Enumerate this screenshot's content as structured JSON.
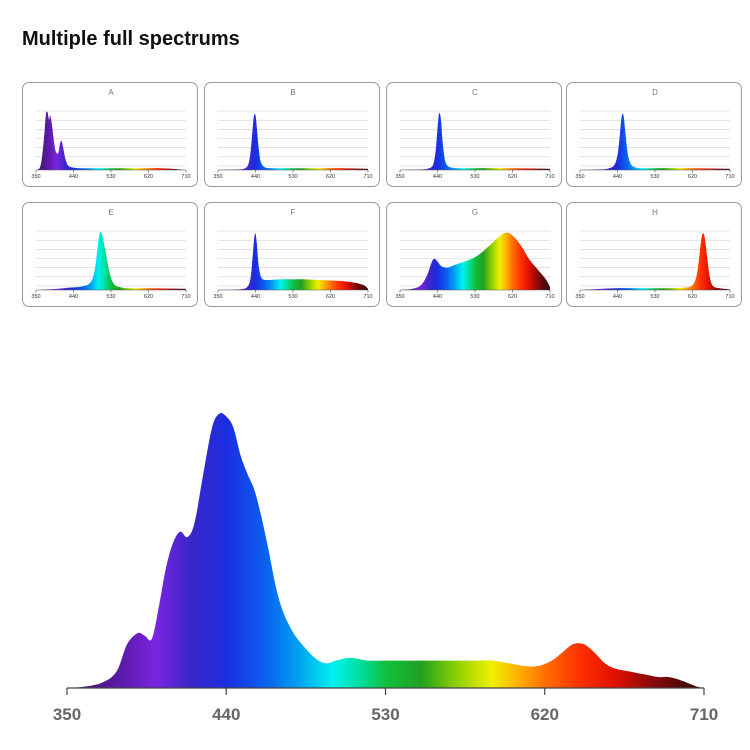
{
  "page": {
    "title": "Multiple full spectrums"
  },
  "chart_data": [
    {
      "type": "area",
      "title": "A",
      "xlim": [
        350,
        710
      ],
      "xticks": [
        350,
        440,
        530,
        620,
        710
      ],
      "ylim": [
        0,
        1.2
      ],
      "gridlines": true,
      "series": [
        {
          "x": [
            350,
            355,
            360,
            365,
            370,
            374,
            378,
            381,
            384,
            388,
            392,
            396,
            400,
            404,
            408,
            412,
            416,
            420,
            425,
            430,
            440,
            455,
            470,
            500,
            530,
            560,
            590,
            620,
            650,
            680,
            710
          ],
          "y": [
            0,
            0.01,
            0.05,
            0.25,
            0.6,
            0.95,
            0.97,
            0.85,
            0.92,
            0.78,
            0.55,
            0.35,
            0.28,
            0.3,
            0.46,
            0.48,
            0.35,
            0.2,
            0.1,
            0.06,
            0.04,
            0.03,
            0.03,
            0.03,
            0.03,
            0.03,
            0.03,
            0.03,
            0.03,
            0.02,
            0
          ]
        }
      ]
    },
    {
      "type": "area",
      "title": "B",
      "xlim": [
        350,
        710
      ],
      "xticks": [
        350,
        440,
        530,
        620,
        710
      ],
      "ylim": [
        0,
        1.2
      ],
      "gridlines": true,
      "series": [
        {
          "x": [
            350,
            400,
            415,
            423,
            428,
            432,
            435,
            438,
            441,
            444,
            448,
            452,
            458,
            465,
            480,
            530,
            600,
            650,
            710
          ],
          "y": [
            0,
            0.01,
            0.03,
            0.1,
            0.3,
            0.6,
            0.85,
            0.95,
            0.88,
            0.65,
            0.35,
            0.15,
            0.07,
            0.04,
            0.03,
            0.03,
            0.03,
            0.03,
            0.02
          ]
        }
      ]
    },
    {
      "type": "area",
      "title": "C",
      "xlim": [
        350,
        710
      ],
      "xticks": [
        350,
        440,
        530,
        620,
        710
      ],
      "ylim": [
        0,
        1.2
      ],
      "gridlines": true,
      "series": [
        {
          "x": [
            350,
            400,
            420,
            430,
            436,
            440,
            443,
            446,
            449,
            452,
            456,
            460,
            466,
            475,
            490,
            530,
            620,
            710
          ],
          "y": [
            0,
            0.01,
            0.03,
            0.1,
            0.35,
            0.7,
            0.93,
            0.95,
            0.8,
            0.5,
            0.25,
            0.12,
            0.06,
            0.04,
            0.03,
            0.03,
            0.03,
            0.02
          ]
        }
      ]
    },
    {
      "type": "area",
      "title": "D",
      "xlim": [
        350,
        710
      ],
      "xticks": [
        350,
        440,
        530,
        620,
        710
      ],
      "ylim": [
        0,
        1.2
      ],
      "gridlines": true,
      "series": [
        {
          "x": [
            350,
            400,
            420,
            432,
            440,
            445,
            449,
            452,
            455,
            458,
            462,
            466,
            472,
            480,
            495,
            530,
            620,
            710
          ],
          "y": [
            0,
            0.01,
            0.03,
            0.08,
            0.25,
            0.55,
            0.85,
            0.95,
            0.9,
            0.7,
            0.42,
            0.22,
            0.1,
            0.05,
            0.03,
            0.03,
            0.03,
            0.02
          ]
        }
      ]
    },
    {
      "type": "area",
      "title": "E",
      "xlim": [
        350,
        710
      ],
      "xticks": [
        350,
        440,
        530,
        620,
        710
      ],
      "ylim": [
        0,
        1.2
      ],
      "gridlines": true,
      "series": [
        {
          "x": [
            350,
            400,
            430,
            460,
            480,
            490,
            496,
            500,
            503,
            506,
            510,
            514,
            518,
            522,
            527,
            533,
            540,
            550,
            570,
            620,
            710
          ],
          "y": [
            0,
            0.02,
            0.04,
            0.06,
            0.12,
            0.3,
            0.6,
            0.85,
            0.96,
            0.98,
            0.9,
            0.75,
            0.62,
            0.45,
            0.28,
            0.15,
            0.08,
            0.05,
            0.03,
            0.03,
            0.02
          ]
        }
      ]
    },
    {
      "type": "area",
      "title": "F",
      "xlim": [
        350,
        710
      ],
      "xticks": [
        350,
        440,
        530,
        620,
        710
      ],
      "ylim": [
        0,
        1.2
      ],
      "gridlines": true,
      "series": [
        {
          "x": [
            350,
            400,
            420,
            428,
            433,
            437,
            440,
            443,
            447,
            452,
            458,
            470,
            500,
            530,
            560,
            590,
            620,
            650,
            680,
            700,
            710
          ],
          "y": [
            0,
            0.01,
            0.05,
            0.2,
            0.55,
            0.88,
            0.95,
            0.8,
            0.45,
            0.25,
            0.18,
            0.17,
            0.18,
            0.18,
            0.18,
            0.17,
            0.16,
            0.15,
            0.12,
            0.08,
            0.02
          ]
        }
      ]
    },
    {
      "type": "area",
      "title": "G",
      "xlim": [
        350,
        710
      ],
      "xticks": [
        350,
        440,
        530,
        620,
        710
      ],
      "ylim": [
        0,
        1.2
      ],
      "gridlines": true,
      "series": [
        {
          "x": [
            350,
            380,
            400,
            415,
            425,
            432,
            440,
            450,
            465,
            480,
            500,
            520,
            540,
            560,
            580,
            595,
            605,
            612,
            620,
            630,
            645,
            660,
            680,
            700,
            710
          ],
          "y": [
            0,
            0.02,
            0.08,
            0.25,
            0.45,
            0.53,
            0.48,
            0.4,
            0.38,
            0.42,
            0.47,
            0.52,
            0.6,
            0.72,
            0.85,
            0.94,
            0.97,
            0.96,
            0.92,
            0.85,
            0.7,
            0.52,
            0.35,
            0.18,
            0.05
          ]
        }
      ]
    },
    {
      "type": "area",
      "title": "H",
      "xlim": [
        350,
        710
      ],
      "xticks": [
        350,
        440,
        530,
        620,
        710
      ],
      "ylim": [
        0,
        1.2
      ],
      "gridlines": true,
      "series": [
        {
          "x": [
            350,
            400,
            440,
            500,
            560,
            600,
            620,
            630,
            636,
            640,
            644,
            648,
            652,
            656,
            660,
            665,
            672,
            685,
            710
          ],
          "y": [
            0,
            0.02,
            0.03,
            0.03,
            0.03,
            0.04,
            0.08,
            0.25,
            0.55,
            0.8,
            0.95,
            0.93,
            0.75,
            0.5,
            0.28,
            0.12,
            0.05,
            0.03,
            0.01
          ]
        }
      ]
    },
    {
      "type": "area",
      "xlim": [
        350,
        710
      ],
      "xticks": [
        350,
        440,
        530,
        620,
        710
      ],
      "ylim": [
        0,
        1.05
      ],
      "gridlines": false,
      "series": [
        {
          "x": [
            350,
            360,
            370,
            378,
            384,
            390,
            394,
            398,
            402,
            406,
            410,
            414,
            418,
            422,
            427,
            432,
            436,
            440,
            444,
            448,
            452,
            456,
            460,
            464,
            468,
            472,
            478,
            484,
            490,
            496,
            502,
            510,
            520,
            530,
            540,
            550,
            560,
            570,
            580,
            590,
            600,
            608,
            616,
            624,
            630,
            636,
            642,
            648,
            654,
            660,
            668,
            676,
            684,
            690,
            696,
            702,
            706,
            710
          ],
          "y": [
            0,
            0.005,
            0.02,
            0.06,
            0.16,
            0.2,
            0.19,
            0.18,
            0.3,
            0.44,
            0.53,
            0.57,
            0.55,
            0.6,
            0.78,
            0.95,
            1.0,
            0.99,
            0.95,
            0.85,
            0.78,
            0.72,
            0.62,
            0.5,
            0.37,
            0.28,
            0.2,
            0.15,
            0.11,
            0.09,
            0.1,
            0.11,
            0.1,
            0.1,
            0.1,
            0.1,
            0.1,
            0.1,
            0.1,
            0.1,
            0.09,
            0.08,
            0.08,
            0.1,
            0.13,
            0.16,
            0.16,
            0.13,
            0.09,
            0.07,
            0.06,
            0.05,
            0.04,
            0.04,
            0.03,
            0.015,
            0.005,
            0
          ]
        }
      ]
    }
  ]
}
